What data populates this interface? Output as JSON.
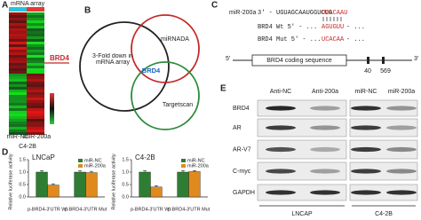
{
  "panels": {
    "A": {
      "label": "A",
      "header": "mRNA array",
      "highlight": "BRD4",
      "columns": [
        "miR-NC",
        "miR-200a"
      ],
      "cell_line": "C4-2B"
    },
    "B": {
      "label": "B",
      "sets": [
        "3-Fold down in mRNA array",
        "miRNADA",
        "Targetscan"
      ],
      "center": "BRD4"
    },
    "C": {
      "label": "C",
      "mir": "miR-200a",
      "mir_seq": "3' - UGUAGCAAUGGUCUG",
      "mir_seed": "UCACAAU",
      "wt": "BRD4  Wt 5' - ...",
      "wt_seed": "AGUGUU",
      "mut": "BRD4  Mut 5' - ...",
      "mut_seed": "UCACAA",
      "tail": "- ...",
      "five": "5'",
      "three": "3'",
      "cds": "BRD4 coding sequence",
      "positions": [
        "40",
        "569"
      ]
    },
    "D": {
      "label": "D"
    },
    "E": {
      "label": "E",
      "columns": [
        "Anti-NC",
        "Anti-200a",
        "miR-NC",
        "miR-200a"
      ],
      "rows": [
        "BRD4",
        "AR",
        "AR-V7",
        "C-myc",
        "GAPDH"
      ],
      "groups": [
        "LNCAP",
        "C4-2B"
      ]
    }
  },
  "chart_data": [
    {
      "type": "bar",
      "title": "LNCaP",
      "ylabel": "Relative luciferase activity",
      "categories": [
        "p-BRD4-3'UTR Wt",
        "p-BRD4-3'UTR Mut"
      ],
      "series": [
        {
          "name": "miR-NC",
          "color": "#2e7d32",
          "values": [
            1.0,
            1.0
          ],
          "errors": [
            0.06,
            0.05
          ]
        },
        {
          "name": "miR-200a",
          "color": "#e08a1e",
          "values": [
            0.48,
            0.98
          ],
          "errors": [
            0.05,
            0.05
          ]
        }
      ],
      "ylim": [
        0,
        1.5
      ],
      "yticks": [
        {
          "value": 0,
          "label": "0.0"
        },
        {
          "value": 0.5,
          "label": "0.5"
        },
        {
          "value": 1,
          "label": "1.0"
        },
        {
          "value": 1.5,
          "label": "1.5"
        }
      ]
    },
    {
      "type": "bar",
      "title": "C4-2B",
      "ylabel": "Relative luciferase activity",
      "categories": [
        "p-BRD4-3'UTR Wt",
        "p-BRD4-3'UTR Mut"
      ],
      "series": [
        {
          "name": "miR-NC",
          "color": "#2e7d32",
          "values": [
            1.0,
            1.0
          ],
          "errors": [
            0.05,
            0.05
          ]
        },
        {
          "name": "miR-200a",
          "color": "#e08a1e",
          "values": [
            0.4,
            1.02
          ],
          "errors": [
            0.05,
            0.04
          ]
        }
      ],
      "ylim": [
        0,
        1.5
      ],
      "yticks": [
        {
          "value": 0,
          "label": "0.0"
        },
        {
          "value": 0.5,
          "label": "0.5"
        },
        {
          "value": 1,
          "label": "1.0"
        },
        {
          "value": 1.5,
          "label": "1.5"
        }
      ]
    }
  ]
}
